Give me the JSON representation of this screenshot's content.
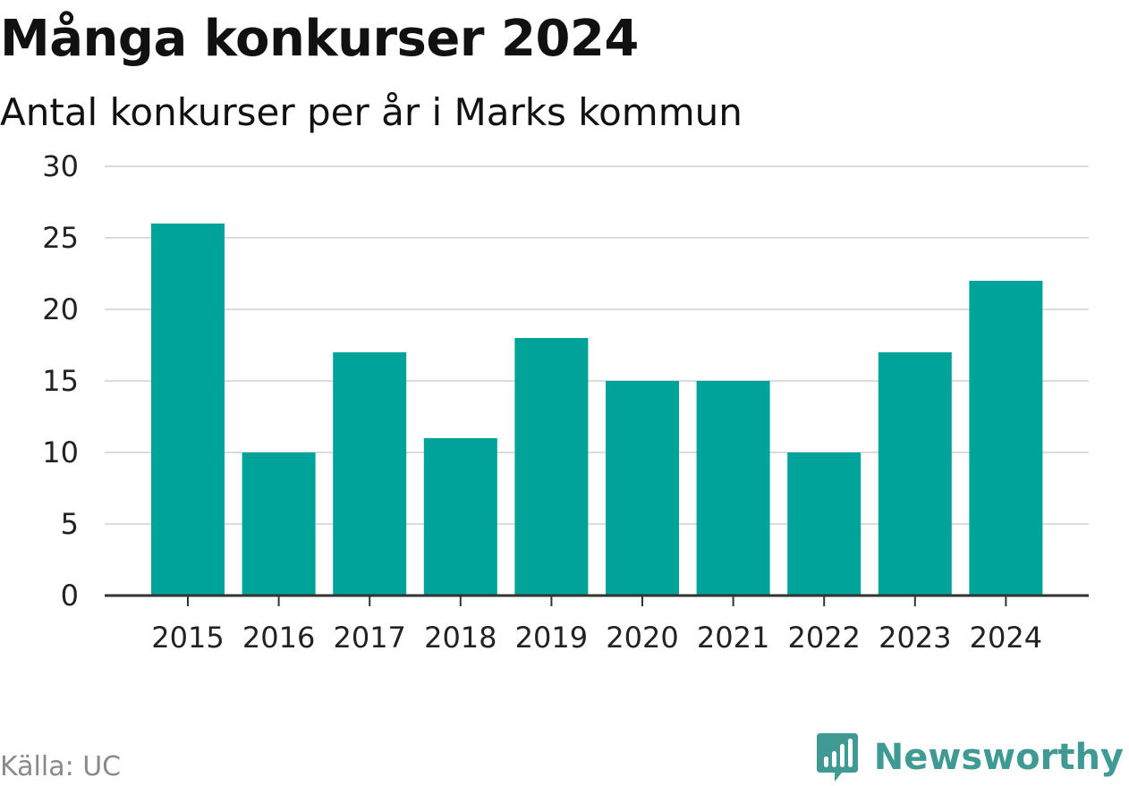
{
  "header": {
    "title": "Många konkurser 2024",
    "subtitle": "Antal konkurser per år i Marks kommun"
  },
  "footer": {
    "source": "Källa: UC",
    "brand": "Newsworthy",
    "brand_icon": "bar-chart-logo-icon"
  },
  "colors": {
    "bar": "#00a39a",
    "grid": "#dcdcdc",
    "axis": "#333333",
    "brand": "#3e9a92"
  },
  "chart_data": {
    "type": "bar",
    "title": "Många konkurser 2024",
    "subtitle": "Antal konkurser per år i Marks kommun",
    "categories": [
      "2015",
      "2016",
      "2017",
      "2018",
      "2019",
      "2020",
      "2021",
      "2022",
      "2023",
      "2024"
    ],
    "values": [
      26,
      10,
      17,
      11,
      18,
      15,
      15,
      10,
      17,
      22
    ],
    "xlabel": "",
    "ylabel": "",
    "ylim": [
      0,
      30
    ],
    "yticks": [
      0,
      5,
      10,
      15,
      20,
      25,
      30
    ],
    "grid": true,
    "legend": "none"
  }
}
